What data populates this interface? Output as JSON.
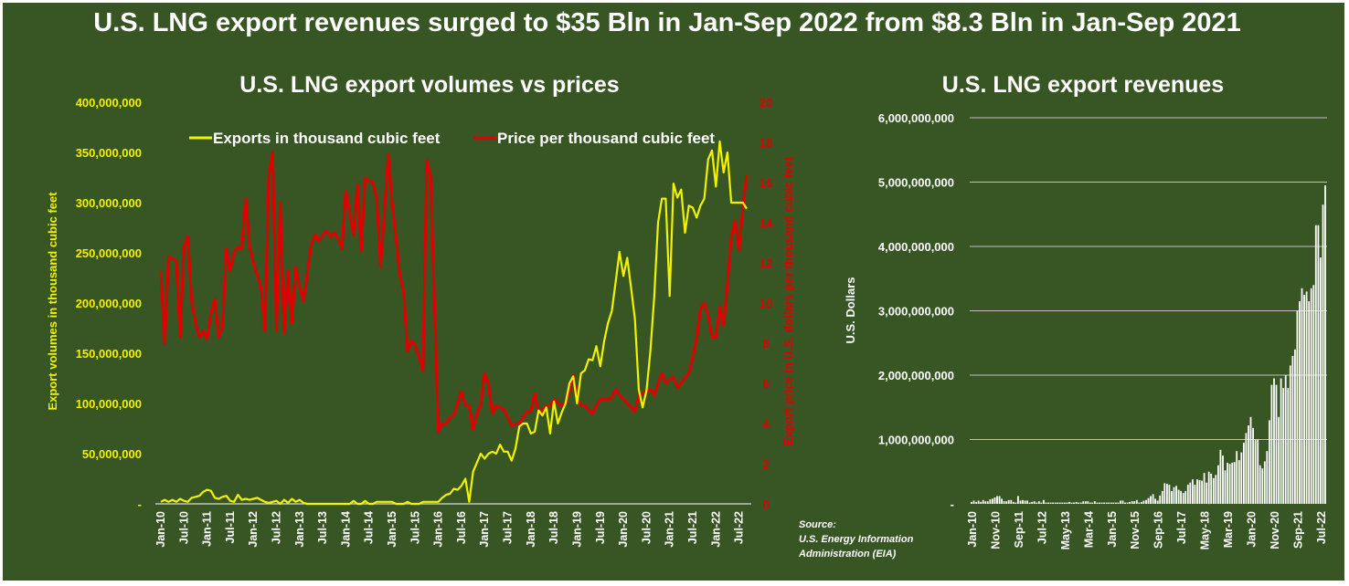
{
  "page_title": "U.S. LNG export revenues surged to $35 Bln in Jan-Sep 2022 from $8.3 Bln in Jan-Sep 2021",
  "source": [
    "Source:",
    "U.S. Energy Information",
    "Administration (EIA)"
  ],
  "colors": {
    "background": "#375623",
    "exports": "#f2f200",
    "price": "#e00000",
    "revenue": "#ffffff",
    "grid": "#bfbfbf"
  },
  "chart_data": [
    {
      "type": "line",
      "title": "U.S. LNG export volumes vs prices",
      "x_start": "Jan-10",
      "x_end": "Sep-22",
      "x_frequency": "monthly",
      "x_tick_labels": [
        "Jan-10",
        "Jul-10",
        "Jan-11",
        "Jul-11",
        "Jan-12",
        "Jul-12",
        "Jan-13",
        "Jul-13",
        "Jan-14",
        "Jul-14",
        "Jan-15",
        "Jul-15",
        "Jan-16",
        "Jul-16",
        "Jan-17",
        "Jul-17",
        "Jan-18",
        "Jul-18",
        "Jan-19",
        "Jul-19",
        "Jan-20",
        "Jul-20",
        "Jan-21",
        "Jul-21",
        "Jan-22",
        "Jul-22"
      ],
      "ylabel": "Export volumes in thousand cubic feet",
      "ylim": [
        0,
        400000000
      ],
      "y_tick_labels": [
        "-",
        "50,000,000",
        "100,000,000",
        "150,000,000",
        "200,000,000",
        "250,000,000",
        "300,000,000",
        "350,000,000",
        "400,000,000"
      ],
      "y2label": "Export price in U.S. dollars per thousand cubic feet",
      "y2lim": [
        0,
        20
      ],
      "y2_tick_labels": [
        "0",
        "2",
        "4",
        "6",
        "8",
        "10",
        "12",
        "14",
        "16",
        "18",
        "20"
      ],
      "legend_position": "top",
      "grid": false,
      "series": [
        {
          "name": "Exports in thousand cubic feet",
          "axis": "left",
          "unit_multiplier": 1000000,
          "values": [
            2,
            4,
            2,
            4,
            2,
            5,
            3,
            2,
            6,
            7,
            8,
            12,
            14,
            13,
            6,
            5,
            7,
            8,
            3,
            2,
            9,
            4,
            5,
            4,
            5,
            6,
            4,
            2,
            1,
            2,
            3,
            0,
            4,
            1,
            5,
            2,
            4,
            1,
            0,
            0,
            0,
            0,
            0,
            0,
            0,
            0,
            0,
            0,
            0,
            0,
            3,
            0,
            0,
            3,
            0,
            0,
            2,
            2,
            2,
            2,
            2,
            0,
            0,
            0,
            2,
            0,
            0,
            0,
            2,
            2,
            2,
            2,
            2,
            6,
            9,
            10,
            15,
            14,
            18,
            25,
            2,
            32,
            41,
            50,
            45,
            50,
            52,
            50,
            59,
            52,
            52,
            43,
            55,
            77,
            80,
            80,
            70,
            72,
            93,
            88,
            96,
            70,
            102,
            80,
            91,
            100,
            120,
            127,
            100,
            130,
            133,
            144,
            143,
            157,
            137,
            162,
            180,
            192,
            221,
            251,
            227,
            245,
            215,
            184,
            114,
            96,
            113,
            152,
            206,
            280,
            304,
            304,
            207,
            319,
            305,
            313,
            270,
            297,
            295,
            285,
            297,
            304,
            343,
            352,
            316,
            361,
            330,
            350,
            300,
            300,
            300,
            300,
            294
          ]
        },
        {
          "name": "Price per thousand cubic feet",
          "axis": "right",
          "values": [
            11.6,
            8.0,
            12.3,
            12.2,
            12.1,
            8.3,
            12.8,
            13.3,
            10.1,
            9.0,
            8.3,
            8.6,
            8.2,
            9.5,
            10.2,
            8.3,
            8.8,
            12.7,
            11.6,
            12.5,
            12.8,
            12.7,
            15.2,
            12.9,
            12.0,
            11.4,
            10.8,
            8.6,
            16.3,
            17.5,
            8.6,
            15.0,
            8.5,
            11.6,
            9.0,
            11.8,
            10.8,
            10.1,
            11.5,
            12.9,
            13.4,
            13.1,
            13.4,
            13.6,
            13.3,
            13.5,
            13.2,
            12.7,
            15.6,
            14.5,
            13.4,
            15.9,
            12.6,
            16.2,
            16.1,
            16.0,
            15.2,
            11.8,
            14.5,
            17.4,
            15.0,
            13.3,
            11.4,
            10.6,
            7.6,
            8.1,
            7.9,
            7.3,
            6.6,
            17.1,
            16.3,
            10.0,
            3.6,
            4.0,
            4.0,
            4.3,
            4.4,
            5.0,
            5.6,
            4.9,
            4.9,
            3.7,
            4.5,
            4.9,
            6.5,
            6.0,
            4.5,
            4.9,
            4.8,
            4.7,
            4.3,
            3.9,
            4.0,
            4.0,
            4.3,
            4.6,
            4.6,
            5.5,
            4.5,
            4.7,
            4.9,
            4.9,
            5.2,
            5.0,
            4.9,
            5.0,
            5.6,
            6.4,
            5.2,
            4.9,
            4.9,
            4.7,
            4.5,
            4.9,
            5.2,
            5.2,
            5.2,
            5.3,
            5.7,
            5.4,
            5.2,
            5.0,
            4.8,
            4.6,
            5.4,
            5.5,
            5.6,
            5.7,
            5.4,
            6.0,
            6.5,
            6.0,
            6.2,
            6.3,
            5.8,
            6.0,
            6.3,
            6.5,
            7.3,
            8.2,
            9.7,
            10.0,
            9.4,
            8.3,
            8.3,
            9.8,
            8.9,
            10.9,
            13.3,
            14.1,
            12.6,
            14.8,
            16.4
          ]
        }
      ]
    },
    {
      "type": "bar",
      "title": "U.S. LNG export revenues",
      "x_start": "Jan-10",
      "x_end": "Sep-22",
      "x_frequency": "monthly",
      "x_tick_labels": [
        "Jan-10",
        "Nov-10",
        "Sep-11",
        "Jul-12",
        "May-13",
        "Mar-14",
        "Jan-15",
        "Nov-15",
        "Sep-16",
        "Jul-17",
        "May-18",
        "Mar-19",
        "Jan-20",
        "Nov-20",
        "Sep-21",
        "Jul-22"
      ],
      "ylabel": "U.S. Dollars",
      "ylim": [
        0,
        6000000000
      ],
      "y_tick_labels": [
        "-",
        "1,000,000,000",
        "2,000,000,000",
        "3,000,000,000",
        "4,000,000,000",
        "5,000,000,000",
        "6,000,000,000"
      ],
      "grid": true,
      "series": [
        {
          "unit_multiplier": 1000000000,
          "values": [
            0.03,
            0.05,
            0.03,
            0.05,
            0.03,
            0.06,
            0.04,
            0.04,
            0.07,
            0.08,
            0.1,
            0.12,
            0.12,
            0.08,
            0.04,
            0.04,
            0.06,
            0.06,
            0.03,
            0.02,
            0.12,
            0.05,
            0.06,
            0.05,
            0.05,
            0.02,
            0.03,
            0.04,
            0.02,
            0.04,
            0.02,
            0.06,
            0.02,
            0.02,
            0.02,
            0.02,
            0.02,
            0.02,
            0.02,
            0.02,
            0.02,
            0.02,
            0.03,
            0.02,
            0.02,
            0.03,
            0.02,
            0.02,
            0.04,
            0.04,
            0.04,
            0.02,
            0.02,
            0.04,
            0.02,
            0.02,
            0.02,
            0.02,
            0.02,
            0.02,
            0.02,
            0.02,
            0.02,
            0.02,
            0.05,
            0.05,
            0.02,
            0.02,
            0.03,
            0.04,
            0.04,
            0.06,
            0.02,
            0.03,
            0.05,
            0.06,
            0.09,
            0.12,
            0.15,
            0.08,
            0.05,
            0.13,
            0.2,
            0.32,
            0.31,
            0.3,
            0.2,
            0.26,
            0.28,
            0.22,
            0.2,
            0.17,
            0.2,
            0.3,
            0.33,
            0.38,
            0.3,
            0.38,
            0.37,
            0.36,
            0.48,
            0.33,
            0.5,
            0.47,
            0.4,
            0.45,
            0.6,
            0.84,
            0.75,
            0.52,
            0.64,
            0.62,
            0.64,
            0.65,
            0.82,
            0.68,
            0.8,
            0.95,
            1.1,
            1.22,
            1.35,
            1.18,
            1.0,
            1.0,
            0.6,
            0.55,
            0.66,
            0.82,
            1.3,
            1.85,
            1.95,
            1.85,
            1.35,
            1.95,
            1.8,
            2.0,
            1.8,
            2.15,
            2.3,
            2.4,
            3.0,
            3.15,
            3.35,
            3.25,
            3.3,
            3.15,
            3.35,
            3.4,
            4.33,
            4.33,
            3.83,
            4.65,
            4.95
          ]
        }
      ]
    }
  ]
}
